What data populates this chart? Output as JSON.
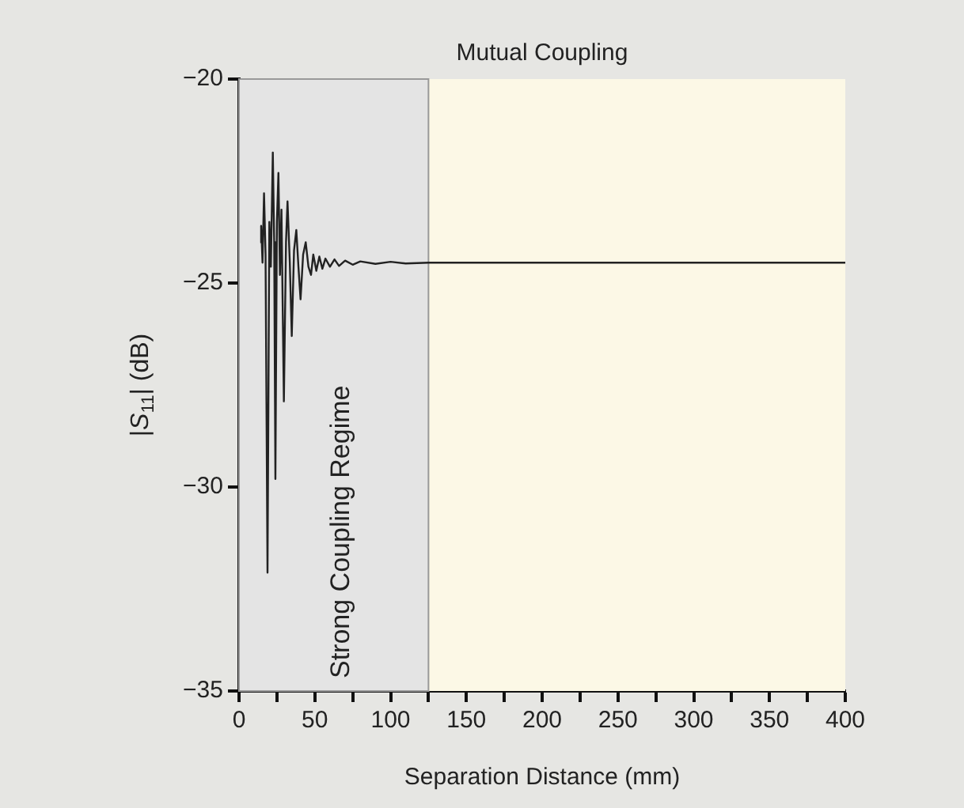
{
  "chart_data": {
    "type": "line",
    "title": "Mutual Coupling",
    "xlabel": "Separation Distance (mm)",
    "ylabel": "|S$_{11}$| (dB)",
    "x": [
      14,
      14.6,
      15.5,
      16.5,
      17.5,
      18.8,
      20,
      21,
      22.3,
      23.2,
      24,
      25,
      26,
      27,
      28,
      29.6,
      31,
      32,
      33.5,
      34.8,
      36.3,
      37.8,
      39.2,
      40.6,
      42.3,
      44,
      45.8,
      47.5,
      49,
      51,
      53,
      55,
      57,
      60,
      63,
      66,
      70,
      75,
      80,
      90,
      100,
      110,
      125,
      150,
      200,
      250,
      300,
      350,
      400
    ],
    "series": [
      {
        "color": "#222222",
        "values": [
          -24.0,
          -23.6,
          -24.5,
          -22.8,
          -24.3,
          -32.1,
          -23.5,
          -24.6,
          -21.8,
          -24.0,
          -29.8,
          -23.5,
          -22.3,
          -24.8,
          -23.2,
          -27.9,
          -24.0,
          -23.0,
          -24.5,
          -26.3,
          -24.2,
          -23.7,
          -24.6,
          -25.4,
          -24.3,
          -24.0,
          -24.6,
          -24.8,
          -24.3,
          -24.7,
          -24.35,
          -24.65,
          -24.4,
          -24.6,
          -24.42,
          -24.58,
          -24.45,
          -24.55,
          -24.47,
          -24.53,
          -24.48,
          -24.52,
          -24.5,
          -24.5,
          -24.5,
          -24.5,
          -24.5,
          -24.5,
          -24.5
        ]
      }
    ],
    "xlim": [
      0,
      400
    ],
    "xticks": [
      0,
      {
        "value": 25,
        "label": null
      },
      50,
      {
        "value": 75,
        "label": null
      },
      100,
      {
        "value": 125,
        "label": null
      },
      150,
      {
        "value": 175,
        "label": null
      },
      200,
      {
        "value": 225,
        "label": null
      },
      250,
      {
        "value": 275,
        "label": null
      },
      300,
      {
        "value": 325,
        "label": null
      },
      350,
      {
        "value": 375,
        "label": null
      },
      400
    ],
    "ylim": [
      -35,
      -20
    ],
    "yticks": [
      {
        "value": -35,
        "label": "−35"
      },
      {
        "value": -30,
        "label": "−30"
      },
      {
        "value": -25,
        "label": "−25"
      },
      {
        "value": -20,
        "label": "−20"
      }
    ],
    "bands": [
      {
        "axis": "x",
        "from": 0,
        "to": 125,
        "label": "Strong Coupling Regime",
        "color": "#e4e4e4"
      }
    ],
    "grid": false,
    "legend": false,
    "marker": "none",
    "line_style": "solid"
  }
}
